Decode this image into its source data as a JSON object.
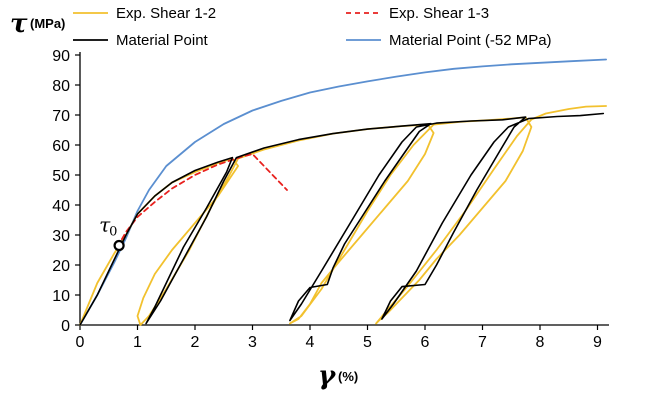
{
  "chart_data": {
    "type": "line",
    "title": "",
    "xlabel_symbol": "γ",
    "xlabel_unit": "(%)",
    "ylabel_symbol": "τ",
    "ylabel_unit": "(MPa)",
    "xlim": [
      0,
      9.2
    ],
    "ylim": [
      0,
      95
    ],
    "xticks": [
      "0",
      "1",
      "2",
      "3",
      "4",
      "5",
      "6",
      "7",
      "8",
      "9"
    ],
    "yticks": [
      "0",
      "10",
      "20",
      "30",
      "40",
      "50",
      "60",
      "70",
      "80",
      "90"
    ],
    "grid": false,
    "legend_placement": "top",
    "annotation": {
      "symbol": "τ",
      "subscript": "0",
      "x": 0.68,
      "y": 26.5
    },
    "series": [
      {
        "name": "Exp. Shear 1-2",
        "color": "#F2C12E",
        "dash": "",
        "points": [
          [
            0,
            0
          ],
          [
            0.3,
            14
          ],
          [
            0.6,
            24
          ],
          [
            0.8,
            30
          ],
          [
            1.0,
            37
          ],
          [
            1.3,
            43
          ],
          [
            1.6,
            47.5
          ],
          [
            2.0,
            51
          ],
          [
            2.4,
            54
          ],
          [
            2.65,
            55.5
          ],
          [
            2.75,
            53
          ],
          [
            2.4,
            43
          ],
          [
            2.0,
            34
          ],
          [
            1.6,
            25
          ],
          [
            1.3,
            17
          ],
          [
            1.1,
            9
          ],
          [
            1.0,
            3
          ],
          [
            1.05,
            0
          ],
          [
            1.2,
            3
          ],
          [
            1.5,
            12
          ],
          [
            1.9,
            25
          ],
          [
            2.3,
            40
          ],
          [
            2.6,
            50
          ],
          [
            2.75,
            55.5
          ],
          [
            3.2,
            58.5
          ],
          [
            3.8,
            61.5
          ],
          [
            4.4,
            63.8
          ],
          [
            5.0,
            65.3
          ],
          [
            5.6,
            66.3
          ],
          [
            6.05,
            66.8
          ],
          [
            6.15,
            64
          ],
          [
            6.0,
            57
          ],
          [
            5.7,
            48
          ],
          [
            5.3,
            39
          ],
          [
            4.9,
            30
          ],
          [
            4.5,
            21
          ],
          [
            4.2,
            14
          ],
          [
            4.0,
            7
          ],
          [
            3.8,
            2
          ],
          [
            3.65,
            0.5
          ],
          [
            3.85,
            3
          ],
          [
            4.2,
            12
          ],
          [
            4.6,
            25
          ],
          [
            5.0,
            38
          ],
          [
            5.4,
            50
          ],
          [
            5.8,
            60
          ],
          [
            6.15,
            66.8
          ],
          [
            6.6,
            67.7
          ],
          [
            7.2,
            68.4
          ],
          [
            7.75,
            69.2
          ],
          [
            7.85,
            66
          ],
          [
            7.7,
            58
          ],
          [
            7.4,
            48
          ],
          [
            7.0,
            39
          ],
          [
            6.6,
            30
          ],
          [
            6.2,
            22
          ],
          [
            5.9,
            15
          ],
          [
            5.6,
            9
          ],
          [
            5.35,
            4
          ],
          [
            5.2,
            1.5
          ],
          [
            5.15,
            0.5
          ],
          [
            5.3,
            4
          ],
          [
            5.7,
            13
          ],
          [
            6.2,
            25
          ],
          [
            6.7,
            38
          ],
          [
            7.2,
            52
          ],
          [
            7.6,
            63
          ],
          [
            7.85,
            68.5
          ],
          [
            8.1,
            70.5
          ],
          [
            8.5,
            72
          ],
          [
            8.8,
            72.8
          ],
          [
            9.15,
            73
          ]
        ]
      },
      {
        "name": "Exp. Shear 1-3",
        "color": "#E8211E",
        "dash": "5,4",
        "points": [
          [
            0.65,
            26
          ],
          [
            0.8,
            31
          ],
          [
            1.0,
            36
          ],
          [
            1.3,
            41
          ],
          [
            1.6,
            45.5
          ],
          [
            2.0,
            50
          ],
          [
            2.4,
            53.5
          ],
          [
            2.8,
            56
          ],
          [
            3.0,
            57
          ],
          [
            3.2,
            53
          ],
          [
            3.4,
            49
          ],
          [
            3.6,
            45
          ]
        ]
      },
      {
        "name": "Material Point",
        "color": "#000000",
        "dash": "",
        "points": [
          [
            0,
            0
          ],
          [
            0.3,
            10
          ],
          [
            0.6,
            22
          ],
          [
            0.8,
            30
          ],
          [
            1.0,
            37
          ],
          [
            1.3,
            43
          ],
          [
            1.6,
            47.5
          ],
          [
            2.0,
            51.5
          ],
          [
            2.4,
            54.3
          ],
          [
            2.65,
            55.8
          ],
          [
            2.55,
            51
          ],
          [
            2.2,
            39
          ],
          [
            1.8,
            26
          ],
          [
            1.5,
            14
          ],
          [
            1.3,
            6
          ],
          [
            1.15,
            0.5
          ],
          [
            1.4,
            8
          ],
          [
            1.8,
            22
          ],
          [
            2.2,
            36
          ],
          [
            2.5,
            48
          ],
          [
            2.72,
            55.8
          ],
          [
            3.2,
            59
          ],
          [
            3.8,
            61.8
          ],
          [
            4.4,
            63.8
          ],
          [
            5.0,
            65.3
          ],
          [
            5.6,
            66.3
          ],
          [
            6.1,
            67.1
          ],
          [
            5.9,
            64.5
          ],
          [
            5.7,
            59
          ],
          [
            5.3,
            48
          ],
          [
            4.9,
            36
          ],
          [
            4.6,
            27
          ],
          [
            4.4,
            19
          ],
          [
            4.3,
            13.5
          ],
          [
            4.0,
            12.5
          ],
          [
            3.8,
            8
          ],
          [
            3.65,
            1.5
          ],
          [
            3.85,
            7
          ],
          [
            4.2,
            18
          ],
          [
            4.7,
            34
          ],
          [
            5.2,
            50
          ],
          [
            5.6,
            61
          ],
          [
            5.85,
            66
          ],
          [
            6.2,
            67.3
          ],
          [
            6.8,
            68
          ],
          [
            7.35,
            68.4
          ],
          [
            7.75,
            69.3
          ],
          [
            7.55,
            66
          ],
          [
            7.3,
            58
          ],
          [
            6.9,
            45
          ],
          [
            6.5,
            31
          ],
          [
            6.2,
            20
          ],
          [
            6.0,
            13.5
          ],
          [
            5.6,
            12.8
          ],
          [
            5.4,
            8
          ],
          [
            5.25,
            2
          ],
          [
            5.45,
            7
          ],
          [
            5.85,
            18
          ],
          [
            6.3,
            34
          ],
          [
            6.8,
            50
          ],
          [
            7.2,
            61
          ],
          [
            7.45,
            66
          ],
          [
            7.8,
            68.8
          ],
          [
            8.3,
            69.5
          ],
          [
            8.7,
            69.8
          ],
          [
            9.1,
            70.5
          ]
        ]
      },
      {
        "name": "Material Point (-52 MPa)",
        "color": "#5B8FD0",
        "dash": "",
        "points": [
          [
            0,
            0
          ],
          [
            0.3,
            10
          ],
          [
            0.6,
            21
          ],
          [
            0.8,
            29
          ],
          [
            1.0,
            38
          ],
          [
            1.2,
            45
          ],
          [
            1.5,
            53
          ],
          [
            2.0,
            61
          ],
          [
            2.5,
            67
          ],
          [
            3.0,
            71.5
          ],
          [
            3.5,
            74.7
          ],
          [
            4.0,
            77.5
          ],
          [
            4.5,
            79.5
          ],
          [
            5.0,
            81.2
          ],
          [
            5.5,
            82.8
          ],
          [
            6.0,
            84.2
          ],
          [
            6.5,
            85.4
          ],
          [
            7.0,
            86.2
          ],
          [
            7.5,
            86.9
          ],
          [
            8.0,
            87.4
          ],
          [
            8.5,
            87.9
          ],
          [
            9.15,
            88.5
          ]
        ]
      }
    ]
  }
}
